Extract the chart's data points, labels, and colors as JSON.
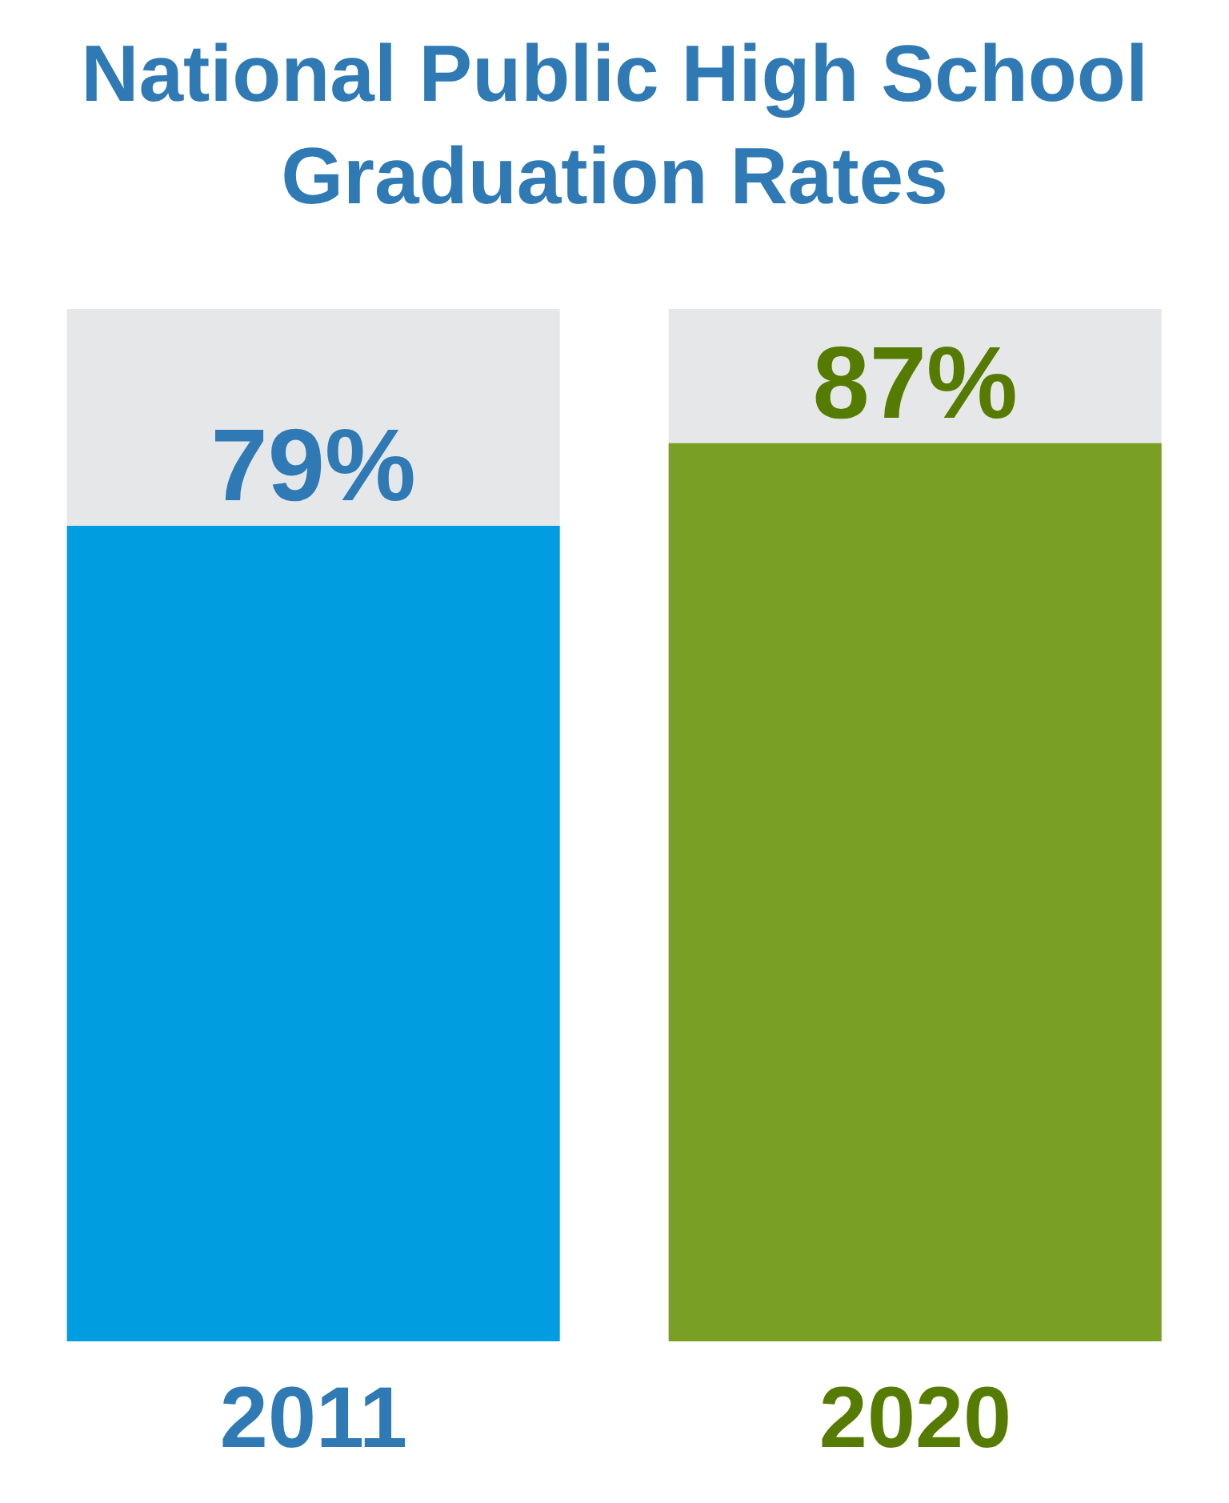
{
  "chart_data": {
    "type": "bar",
    "title": "National Public High School Graduation Rates",
    "categories": [
      "2011",
      "2020"
    ],
    "values": [
      79,
      87
    ],
    "colors": [
      "#009ee0",
      "#7a9f25"
    ],
    "value_labels": [
      "79%",
      "87%"
    ],
    "ylim": [
      0,
      100
    ]
  }
}
